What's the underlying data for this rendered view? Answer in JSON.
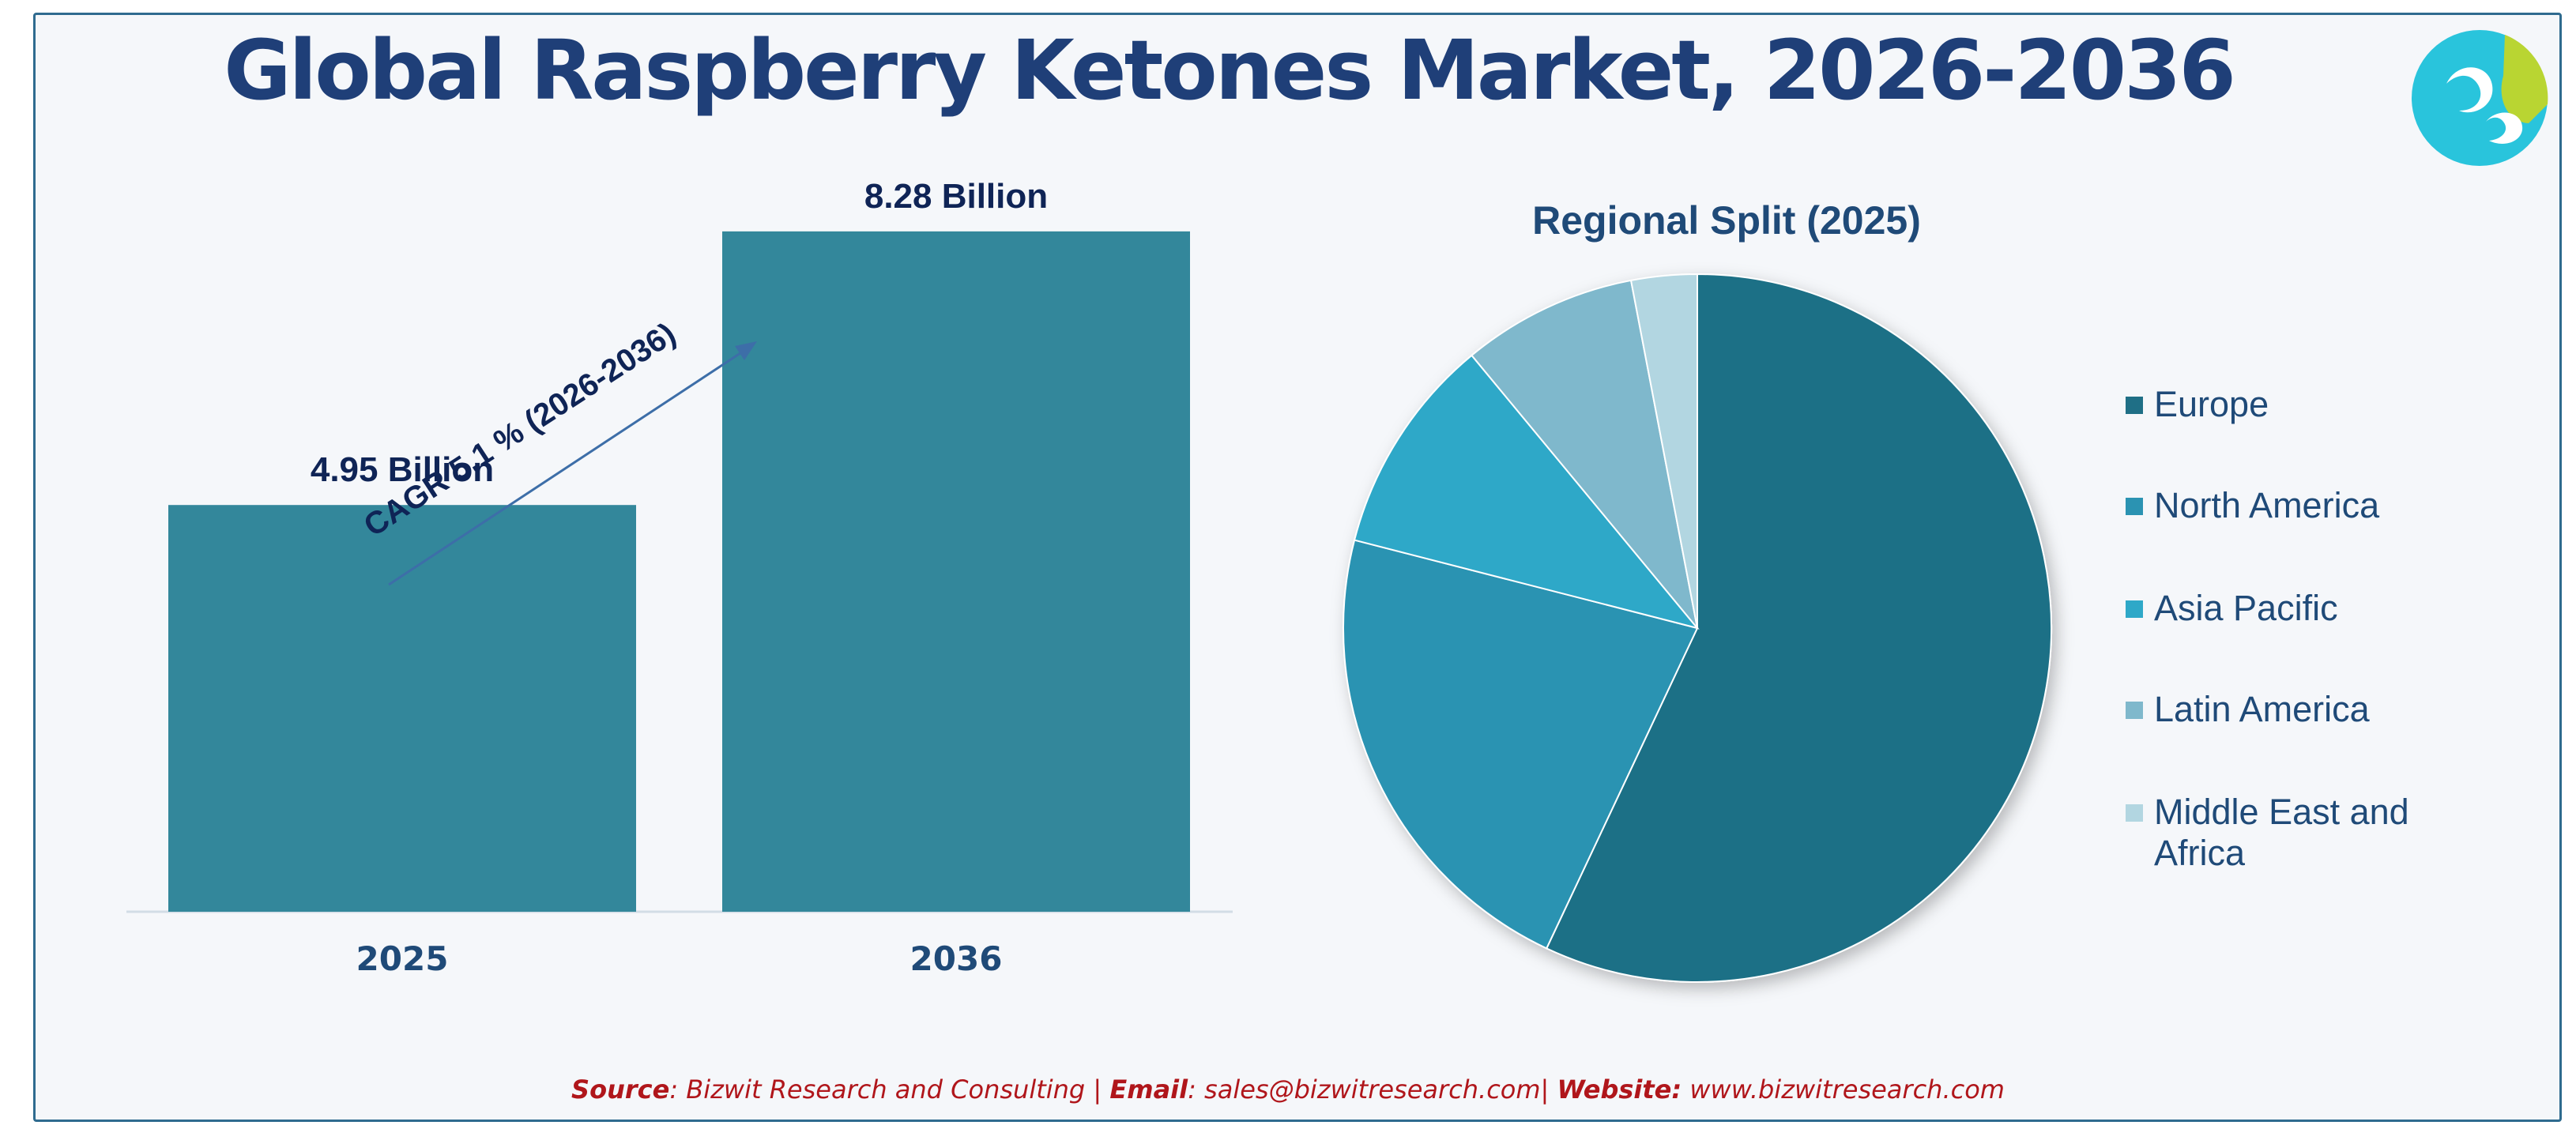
{
  "title": "Global Raspberry Ketones Market, 2026-2036",
  "colors": {
    "title": "#1f3f78",
    "bar": "#33879b",
    "label_dark": "#0f2456",
    "axis_label": "#1f4a78",
    "footer": "#b0161b",
    "frame_border": "#2f6b8f"
  },
  "logo": {
    "icon": "bizwit-logo"
  },
  "chart_data": [
    {
      "type": "bar",
      "categories": [
        "2025",
        "2036"
      ],
      "values": [
        4.95,
        8.28
      ],
      "data_labels": [
        "4.95 Billion",
        "8.28 Billion"
      ],
      "ylim": [
        0,
        10
      ],
      "grid": false,
      "annotation": "CAGR 5.1 % (2026-2036)"
    },
    {
      "type": "pie",
      "title": "Regional Split (2025)",
      "labels": [
        "Europe",
        "North America",
        "Asia Pacific",
        "Latin America",
        "Middle East and Africa"
      ],
      "values": [
        57,
        22,
        10,
        8,
        3
      ],
      "colors": [
        "#1f6f86",
        "#2b93b2",
        "#2ea8c8",
        "#7fb8cc",
        "#b2d6e1"
      ],
      "legend_position": "right"
    }
  ],
  "footer": {
    "source_label": "Source",
    "source_text": ": Bizwit Research and Consulting | ",
    "email_label": "Email",
    "email_text": ": sales@bizwitresearch.com| ",
    "website_label": "Website:",
    "website_text": " www.bizwitresearch.com"
  }
}
